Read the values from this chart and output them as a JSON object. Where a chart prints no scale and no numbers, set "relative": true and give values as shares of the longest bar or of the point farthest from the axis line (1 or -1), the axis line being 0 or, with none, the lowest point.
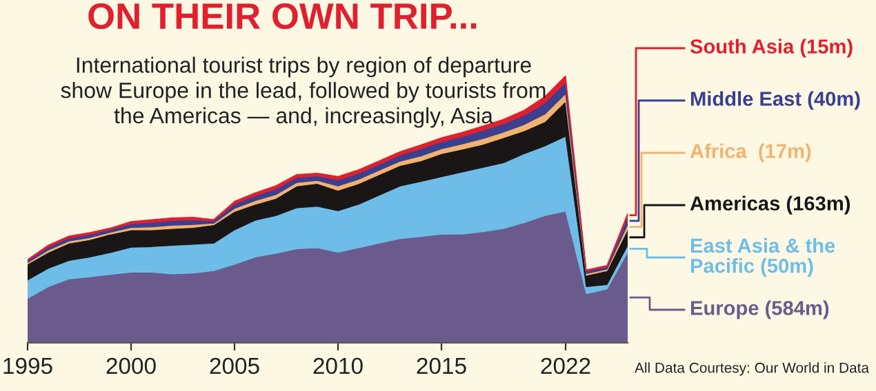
{
  "chart_data": {
    "type": "area",
    "stacked": true,
    "relative": true,
    "legend": "right",
    "title": "ON THEIR OWN TRIP...",
    "subtitle": "International tourist trips by region of departure\nshow Europe in the lead, followed by tourists from\nthe Americas — and, increasingly, Asia",
    "annotations": [
      "All Data Courtesy: Our World in Data"
    ],
    "categories": [
      "1995",
      null,
      null,
      null,
      null,
      "2000",
      null,
      null,
      null,
      null,
      "2005",
      null,
      null,
      null,
      null,
      "2010",
      null,
      null,
      null,
      null,
      "2015",
      null,
      null,
      null,
      null,
      null,
      "2022",
      null,
      null,
      null
    ],
    "series": [
      {
        "name": "Europe (584m)",
        "color": "#6b5b8c",
        "values": [
          0.166,
          0.21,
          0.239,
          0.247,
          0.256,
          0.264,
          0.264,
          0.258,
          0.261,
          0.27,
          0.294,
          0.321,
          0.335,
          0.352,
          0.356,
          0.339,
          0.356,
          0.373,
          0.39,
          0.398,
          0.407,
          0.407,
          0.416,
          0.428,
          0.45,
          0.476,
          0.493,
          0.184,
          0.201,
          0.339
        ]
      },
      {
        "name": "East Asia & the\nPacific (50m)",
        "color": "#6ebde9",
        "values": [
          0.069,
          0.069,
          0.069,
          0.074,
          0.082,
          0.094,
          0.096,
          0.107,
          0.108,
          0.103,
          0.129,
          0.138,
          0.141,
          0.153,
          0.155,
          0.155,
          0.163,
          0.18,
          0.197,
          0.206,
          0.215,
          0.232,
          0.241,
          0.246,
          0.258,
          0.261,
          0.28,
          0.026,
          0.017,
          0.026
        ]
      },
      {
        "name": "Americas (163m)",
        "color": "#1a1616",
        "values": [
          0.06,
          0.06,
          0.065,
          0.065,
          0.069,
          0.065,
          0.063,
          0.063,
          0.063,
          0.069,
          0.069,
          0.06,
          0.065,
          0.082,
          0.086,
          0.077,
          0.077,
          0.077,
          0.077,
          0.077,
          0.086,
          0.086,
          0.086,
          0.094,
          0.086,
          0.091,
          0.132,
          0.043,
          0.052,
          0.06
        ]
      },
      {
        "name": "Africa  (17m)",
        "color": "#f2b36e",
        "values": [
          0.005,
          0.008,
          0.008,
          0.008,
          0.007,
          0.009,
          0.011,
          0.012,
          0.011,
          0.006,
          0.011,
          0.013,
          0.014,
          0.013,
          0.011,
          0.016,
          0.016,
          0.016,
          0.016,
          0.018,
          0.018,
          0.019,
          0.021,
          0.021,
          0.023,
          0.028,
          0.028,
          0.006,
          0.006,
          0.018
        ]
      },
      {
        "name": "Middle East (40m)",
        "color": "#3a3f8f",
        "values": [
          0.008,
          0.012,
          0.012,
          0.012,
          0.01,
          0.014,
          0.017,
          0.018,
          0.017,
          0.009,
          0.017,
          0.019,
          0.021,
          0.019,
          0.017,
          0.023,
          0.023,
          0.023,
          0.023,
          0.027,
          0.027,
          0.028,
          0.031,
          0.031,
          0.035,
          0.042,
          0.042,
          0.009,
          0.009,
          0.027
        ]
      },
      {
        "name": "South Asia (15m)",
        "color": "#e0202e",
        "values": [
          0.004,
          0.007,
          0.007,
          0.007,
          0.006,
          0.008,
          0.01,
          0.01,
          0.01,
          0.005,
          0.01,
          0.011,
          0.012,
          0.011,
          0.01,
          0.013,
          0.013,
          0.013,
          0.013,
          0.015,
          0.015,
          0.016,
          0.017,
          0.017,
          0.019,
          0.024,
          0.025,
          0.005,
          0.005,
          0.015
        ]
      }
    ]
  }
}
